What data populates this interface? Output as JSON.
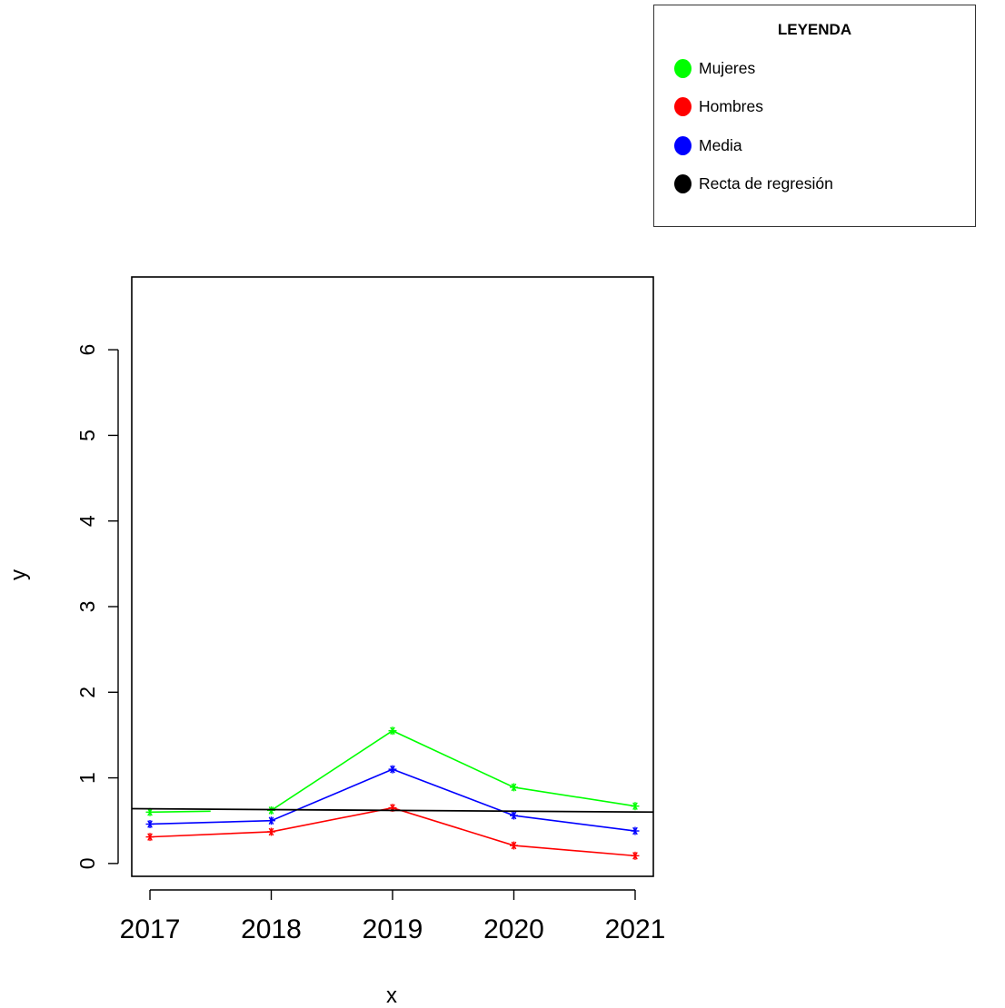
{
  "chart_data": {
    "type": "line",
    "title": "",
    "xlabel": "x",
    "ylabel": "y",
    "x": [
      "2017",
      "2018",
      "2019",
      "2020",
      "2021"
    ],
    "x_values": [
      2017,
      2018,
      2019,
      2020,
      2021
    ],
    "xlim": [
      2016.85,
      2021.15
    ],
    "ylim": [
      -0.15,
      6.85
    ],
    "yticks": [
      0,
      1,
      2,
      3,
      4,
      5,
      6
    ],
    "series": [
      {
        "name": "Mujeres",
        "color": "#00ff00",
        "values": [
          0.6,
          0.62,
          1.55,
          0.89,
          0.67
        ],
        "marker": "*"
      },
      {
        "name": "Hombres",
        "color": "#ff0000",
        "values": [
          0.31,
          0.37,
          0.65,
          0.21,
          0.09
        ],
        "marker": "*"
      },
      {
        "name": "Media",
        "color": "#0000ff",
        "values": [
          0.46,
          0.5,
          1.1,
          0.56,
          0.38
        ],
        "marker": "*"
      }
    ],
    "regression_line": {
      "name": "Recta de regresión",
      "color": "#000000",
      "start": [
        2016.85,
        0.64
      ],
      "end": [
        2021.15,
        0.6
      ]
    },
    "mujeres_partial_segment_end_x": 2017.5,
    "grid": false,
    "legend": {
      "title": "LEYENDA",
      "placement": "top-right",
      "entries": [
        {
          "label": "Mujeres",
          "color": "#00ff00"
        },
        {
          "label": "Hombres",
          "color": "#ff0000"
        },
        {
          "label": "Media",
          "color": "#0000ff"
        },
        {
          "label": "Recta de regresión",
          "color": "#000000"
        }
      ]
    }
  }
}
